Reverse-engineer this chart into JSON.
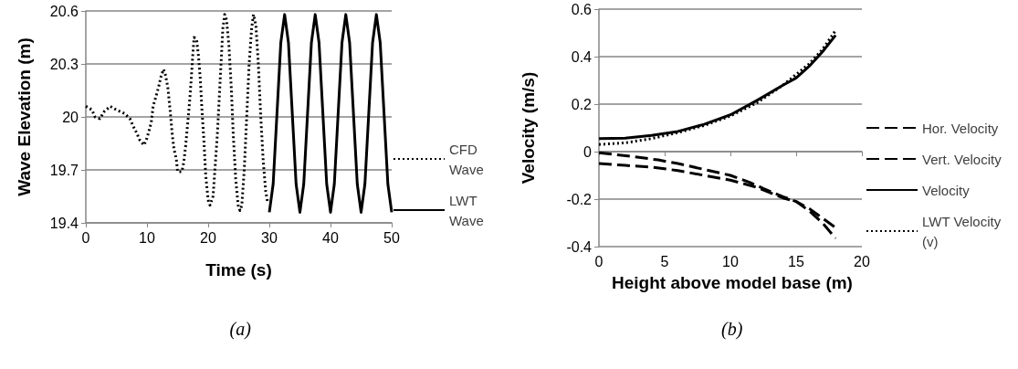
{
  "chart_data": [
    {
      "type": "line",
      "xlabel": "Time (s)",
      "ylabel": "Wave Elevation (m)",
      "annotations": [
        "(a)"
      ],
      "xlim": [
        0,
        50
      ],
      "xticks": [
        0,
        10,
        20,
        30,
        40,
        50
      ],
      "ylim": [
        19.4,
        20.6
      ],
      "yticks": [
        19.4,
        19.7,
        20,
        20.3,
        20.6
      ],
      "grid": "y",
      "legend": "right",
      "marker": "none",
      "series": [
        {
          "name": "CFD Wave",
          "color": "#000000",
          "line_style": "dotted",
          "x": [
            0,
            1,
            1.5,
            2.3,
            3,
            4,
            5,
            6.3,
            7.2,
            7.7,
            8.3,
            8.8,
            9.5,
            10,
            10.4,
            10.7,
            11,
            11.5,
            11.9,
            12.3,
            12.7,
            13,
            13.4,
            13.8,
            14.1,
            14.4,
            14.8,
            15,
            15.7,
            16,
            16.3,
            16.7,
            17,
            17.3,
            17.5,
            17.7,
            18.1,
            18.4,
            18.7,
            19,
            19.3,
            19.6,
            20,
            20.3,
            20.8,
            21.1,
            21.5,
            21.8,
            22.1,
            22.4,
            22.7,
            23,
            23.4,
            23.8,
            24.1,
            24.5,
            24.9,
            25.2,
            25.5,
            25.9,
            26.3,
            26.7,
            27.1,
            27.4,
            27.8,
            28.2,
            28.6,
            29,
            29.4,
            29.7
          ],
          "values": [
            20.06,
            20.04,
            20.0,
            19.99,
            20.03,
            20.06,
            20.04,
            20.02,
            19.99,
            19.95,
            19.91,
            19.87,
            19.84,
            19.88,
            19.93,
            19.97,
            20.06,
            20.12,
            20.17,
            20.23,
            20.27,
            20.24,
            20.17,
            20.03,
            19.91,
            19.82,
            19.76,
            19.69,
            19.69,
            19.74,
            19.83,
            19.98,
            20.1,
            20.25,
            20.36,
            20.45,
            20.44,
            20.35,
            20.22,
            20.03,
            19.87,
            19.67,
            19.53,
            19.5,
            19.55,
            19.7,
            19.9,
            20.1,
            20.3,
            20.5,
            20.58,
            20.55,
            20.4,
            20.15,
            19.9,
            19.65,
            19.5,
            19.47,
            19.5,
            19.7,
            20.0,
            20.3,
            20.5,
            20.58,
            20.52,
            20.3,
            20.0,
            19.75,
            19.58,
            19.52
          ]
        },
        {
          "name": "LWT Wave",
          "color": "#000000",
          "line_style": "solid",
          "x": [
            30,
            30.625,
            31.25,
            31.875,
            32.5,
            33.125,
            33.75,
            34.375,
            35,
            35.625,
            36.25,
            36.875,
            37.5,
            38.125,
            38.75,
            39.375,
            40,
            40.625,
            41.25,
            41.875,
            42.5,
            43.125,
            43.75,
            44.375,
            45,
            45.625,
            46.25,
            46.875,
            47.5,
            48.125,
            48.75,
            49.375,
            50
          ],
          "values": [
            19.46,
            19.62,
            20.02,
            20.42,
            20.58,
            20.42,
            20.02,
            19.62,
            19.46,
            19.62,
            20.02,
            20.42,
            20.58,
            20.42,
            20.02,
            19.62,
            19.46,
            19.62,
            20.02,
            20.42,
            20.58,
            20.42,
            20.02,
            19.62,
            19.46,
            19.62,
            20.02,
            20.42,
            20.58,
            20.42,
            20.02,
            19.62,
            19.46
          ]
        }
      ]
    },
    {
      "type": "line",
      "xlabel": "Height above model base (m)",
      "ylabel": "Velocity (m/s)",
      "annotations": [
        "(b)"
      ],
      "xlim": [
        0,
        20
      ],
      "xticks": [
        0,
        5,
        10,
        15,
        20
      ],
      "ylim": [
        -0.4,
        0.6
      ],
      "yticks": [
        -0.4,
        -0.2,
        0,
        0.2,
        0.4,
        0.6
      ],
      "grid": "y",
      "legend": "right",
      "marker": "none",
      "series": [
        {
          "name": "Hor. Velocity",
          "color": "#000000",
          "line_style": "dashed",
          "x": [
            0,
            2,
            4,
            6,
            8,
            10,
            12,
            14,
            15,
            16,
            17,
            18
          ],
          "values": [
            -0.05,
            -0.058,
            -0.065,
            -0.08,
            -0.1,
            -0.12,
            -0.15,
            -0.195,
            -0.21,
            -0.25,
            -0.3,
            -0.365
          ]
        },
        {
          "name": "Vert. Velocity",
          "color": "#000000",
          "line_style": "dashed",
          "x": [
            0,
            2.5,
            4.5,
            6,
            8,
            10,
            11.5,
            12.5,
            14,
            15,
            16,
            17,
            18
          ],
          "values": [
            -0.005,
            -0.02,
            -0.035,
            -0.05,
            -0.075,
            -0.1,
            -0.13,
            -0.155,
            -0.19,
            -0.21,
            -0.24,
            -0.28,
            -0.32
          ]
        },
        {
          "name": "Velocity",
          "color": "#000000",
          "line_style": "solid",
          "x": [
            0,
            2,
            4,
            6,
            8,
            10,
            12,
            14,
            15,
            16,
            17,
            18
          ],
          "values": [
            0.055,
            0.057,
            0.068,
            0.085,
            0.115,
            0.155,
            0.215,
            0.28,
            0.31,
            0.36,
            0.42,
            0.49
          ]
        },
        {
          "name": "LWT Velocity (v)",
          "color": "#000000",
          "line_style": "dotted",
          "x": [
            0,
            2,
            4,
            6,
            8,
            10,
            12,
            14,
            16,
            17,
            18
          ],
          "values": [
            0.03,
            0.037,
            0.055,
            0.08,
            0.11,
            0.15,
            0.205,
            0.28,
            0.37,
            0.43,
            0.51
          ]
        }
      ]
    }
  ]
}
